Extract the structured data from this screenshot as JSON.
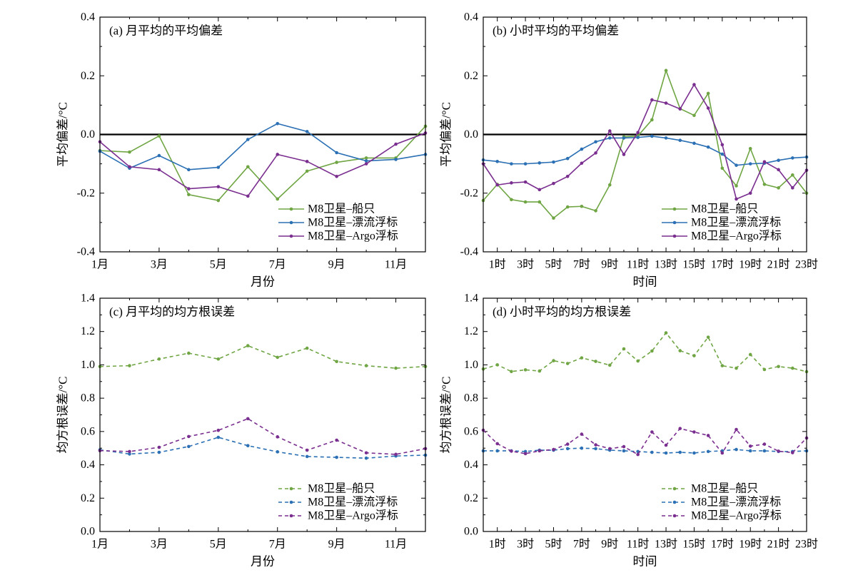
{
  "chart_data": [
    {
      "type": "line",
      "title": "(a) 月平均的平均偏差",
      "xlabel": "月份",
      "ylabel": "平均偏差/°C",
      "x": [
        1,
        2,
        3,
        4,
        5,
        6,
        7,
        8,
        9,
        10,
        11,
        12
      ],
      "xlim": [
        1,
        12
      ],
      "xticks": [
        1,
        3,
        5,
        7,
        9,
        11
      ],
      "xtick_labels": [
        "1月",
        "3月",
        "5月",
        "7月",
        "9月",
        "11月"
      ],
      "ylim": [
        -0.4,
        0.4
      ],
      "yticks": [
        -0.4,
        -0.2,
        0,
        0.2,
        0.4
      ],
      "ytick_labels": [
        "-0.4",
        "-0.2",
        "0.0",
        "0.2",
        "0.4"
      ],
      "reference_line_y": 0,
      "line_style": "solid",
      "grid": false,
      "legend_position": "bottom-right",
      "series": [
        {
          "name": "M8卫星–船只",
          "color": "#6fa543",
          "values": [
            -0.055,
            -0.06,
            -0.005,
            -0.205,
            -0.225,
            -0.11,
            -0.22,
            -0.125,
            -0.095,
            -0.08,
            -0.08,
            0.028
          ]
        },
        {
          "name": "M8卫星–漂流浮标",
          "color": "#2b70b4",
          "values": [
            -0.057,
            -0.115,
            -0.072,
            -0.12,
            -0.112,
            -0.017,
            0.037,
            0.01,
            -0.062,
            -0.09,
            -0.085,
            -0.068
          ]
        },
        {
          "name": "M8卫星–Argo浮标",
          "color": "#7a2e8f",
          "values": [
            -0.025,
            -0.11,
            -0.12,
            -0.185,
            -0.178,
            -0.21,
            -0.068,
            -0.092,
            -0.143,
            -0.1,
            -0.033,
            0.005
          ]
        }
      ]
    },
    {
      "type": "line",
      "title": "(b) 小时平均的平均偏差",
      "xlabel": "时间",
      "ylabel": "平均偏差/°C",
      "x": [
        0,
        1,
        2,
        3,
        4,
        5,
        6,
        7,
        8,
        9,
        10,
        11,
        12,
        13,
        14,
        15,
        16,
        17,
        18,
        19,
        20,
        21,
        22,
        23
      ],
      "xlim": [
        0,
        23
      ],
      "xticks": [
        1,
        3,
        5,
        7,
        9,
        11,
        13,
        15,
        17,
        19,
        21,
        23
      ],
      "xtick_labels": [
        "1时",
        "3时",
        "5时",
        "7时",
        "9时",
        "11时",
        "13时",
        "15时",
        "17时",
        "19时",
        "21时",
        "23时"
      ],
      "ylim": [
        -0.4,
        0.4
      ],
      "yticks": [
        -0.4,
        -0.2,
        0,
        0.2,
        0.4
      ],
      "ytick_labels": [
        "-0.4",
        "-0.2",
        "0.0",
        "0.2",
        "0.4"
      ],
      "reference_line_y": 0,
      "line_style": "solid",
      "grid": false,
      "legend_position": "bottom-right",
      "series": [
        {
          "name": "M8卫星–船只",
          "color": "#6fa543",
          "values": [
            -0.225,
            -0.17,
            -0.222,
            -0.23,
            -0.23,
            -0.285,
            -0.247,
            -0.245,
            -0.26,
            -0.172,
            -0.008,
            -0.005,
            0.05,
            0.218,
            0.088,
            0.065,
            0.14,
            -0.115,
            -0.175,
            -0.048,
            -0.17,
            -0.182,
            -0.138,
            -0.2
          ]
        },
        {
          "name": "M8卫星–漂流浮标",
          "color": "#2b70b4",
          "values": [
            -0.087,
            -0.092,
            -0.1,
            -0.1,
            -0.097,
            -0.094,
            -0.082,
            -0.05,
            -0.025,
            -0.012,
            -0.012,
            -0.01,
            -0.006,
            -0.012,
            -0.02,
            -0.03,
            -0.043,
            -0.067,
            -0.105,
            -0.1,
            -0.098,
            -0.088,
            -0.08,
            -0.077
          ]
        },
        {
          "name": "M8卫星–Argo浮标",
          "color": "#7a2e8f",
          "values": [
            -0.1,
            -0.172,
            -0.165,
            -0.162,
            -0.188,
            -0.167,
            -0.143,
            -0.098,
            -0.063,
            0.012,
            -0.068,
            0.007,
            0.118,
            0.107,
            0.087,
            0.17,
            0.09,
            -0.035,
            -0.22,
            -0.2,
            -0.093,
            -0.12,
            -0.182,
            -0.122
          ]
        }
      ]
    },
    {
      "type": "line",
      "title": "(c) 月平均的均方根误差",
      "xlabel": "月份",
      "ylabel": "均方根误差/°C",
      "x": [
        1,
        2,
        3,
        4,
        5,
        6,
        7,
        8,
        9,
        10,
        11,
        12
      ],
      "xlim": [
        1,
        12
      ],
      "xticks": [
        1,
        3,
        5,
        7,
        9,
        11
      ],
      "xtick_labels": [
        "1月",
        "3月",
        "5月",
        "7月",
        "9月",
        "11月"
      ],
      "ylim": [
        0,
        1.4
      ],
      "yticks": [
        0,
        0.2,
        0.4,
        0.6,
        0.8,
        1.0,
        1.2,
        1.4
      ],
      "ytick_labels": [
        "0.0",
        "0.2",
        "0.4",
        "0.6",
        "0.8",
        "1.0",
        "1.2",
        "1.4"
      ],
      "line_style": "dashed",
      "grid": false,
      "legend_position": "bottom-right",
      "series": [
        {
          "name": "M8卫星–船只",
          "color": "#6fa543",
          "values": [
            0.99,
            0.995,
            1.035,
            1.07,
            1.035,
            1.115,
            1.045,
            1.1,
            1.02,
            0.995,
            0.98,
            0.99
          ]
        },
        {
          "name": "M8卫星–漂流浮标",
          "color": "#2b70b4",
          "values": [
            0.49,
            0.465,
            0.475,
            0.51,
            0.565,
            0.515,
            0.478,
            0.45,
            0.445,
            0.44,
            0.453,
            0.458
          ]
        },
        {
          "name": "M8卫星–Argo浮标",
          "color": "#7a2e8f",
          "values": [
            0.485,
            0.48,
            0.505,
            0.57,
            0.607,
            0.677,
            0.568,
            0.488,
            0.548,
            0.472,
            0.463,
            0.497
          ]
        }
      ]
    },
    {
      "type": "line",
      "title": "(d) 小时平均的均方根误差",
      "xlabel": "时间",
      "ylabel": "均方根误差/°C",
      "x": [
        0,
        1,
        2,
        3,
        4,
        5,
        6,
        7,
        8,
        9,
        10,
        11,
        12,
        13,
        14,
        15,
        16,
        17,
        18,
        19,
        20,
        21,
        22,
        23
      ],
      "xlim": [
        0,
        23
      ],
      "xticks": [
        1,
        3,
        5,
        7,
        9,
        11,
        13,
        15,
        17,
        19,
        21,
        23
      ],
      "xtick_labels": [
        "1时",
        "3时",
        "5时",
        "7时",
        "9时",
        "11时",
        "13时",
        "15时",
        "17时",
        "19时",
        "21时",
        "23时"
      ],
      "ylim": [
        0,
        1.4
      ],
      "yticks": [
        0,
        0.2,
        0.4,
        0.6,
        0.8,
        1.0,
        1.2,
        1.4
      ],
      "ytick_labels": [
        "0.0",
        "0.2",
        "0.4",
        "0.6",
        "0.8",
        "1.0",
        "1.2",
        "1.4"
      ],
      "line_style": "dashed",
      "grid": false,
      "legend_position": "bottom-right",
      "series": [
        {
          "name": "M8卫星–船只",
          "color": "#6fa543",
          "values": [
            0.975,
            1.0,
            0.96,
            0.97,
            0.963,
            1.025,
            1.008,
            1.042,
            1.021,
            0.998,
            1.096,
            1.023,
            1.083,
            1.192,
            1.085,
            1.055,
            1.166,
            0.995,
            0.98,
            1.062,
            0.972,
            0.99,
            0.98,
            0.959
          ]
        },
        {
          "name": "M8卫星–漂流浮标",
          "color": "#2b70b4",
          "values": [
            0.484,
            0.484,
            0.484,
            0.48,
            0.488,
            0.488,
            0.497,
            0.5,
            0.497,
            0.488,
            0.484,
            0.48,
            0.475,
            0.471,
            0.475,
            0.471,
            0.48,
            0.484,
            0.492,
            0.484,
            0.484,
            0.48,
            0.48,
            0.484
          ]
        },
        {
          "name": "M8卫星–Argo浮标",
          "color": "#7a2e8f",
          "values": [
            0.608,
            0.527,
            0.482,
            0.467,
            0.484,
            0.492,
            0.524,
            0.584,
            0.52,
            0.497,
            0.509,
            0.462,
            0.597,
            0.518,
            0.618,
            0.597,
            0.576,
            0.471,
            0.612,
            0.512,
            0.524,
            0.482,
            0.473,
            0.561
          ]
        }
      ]
    }
  ]
}
